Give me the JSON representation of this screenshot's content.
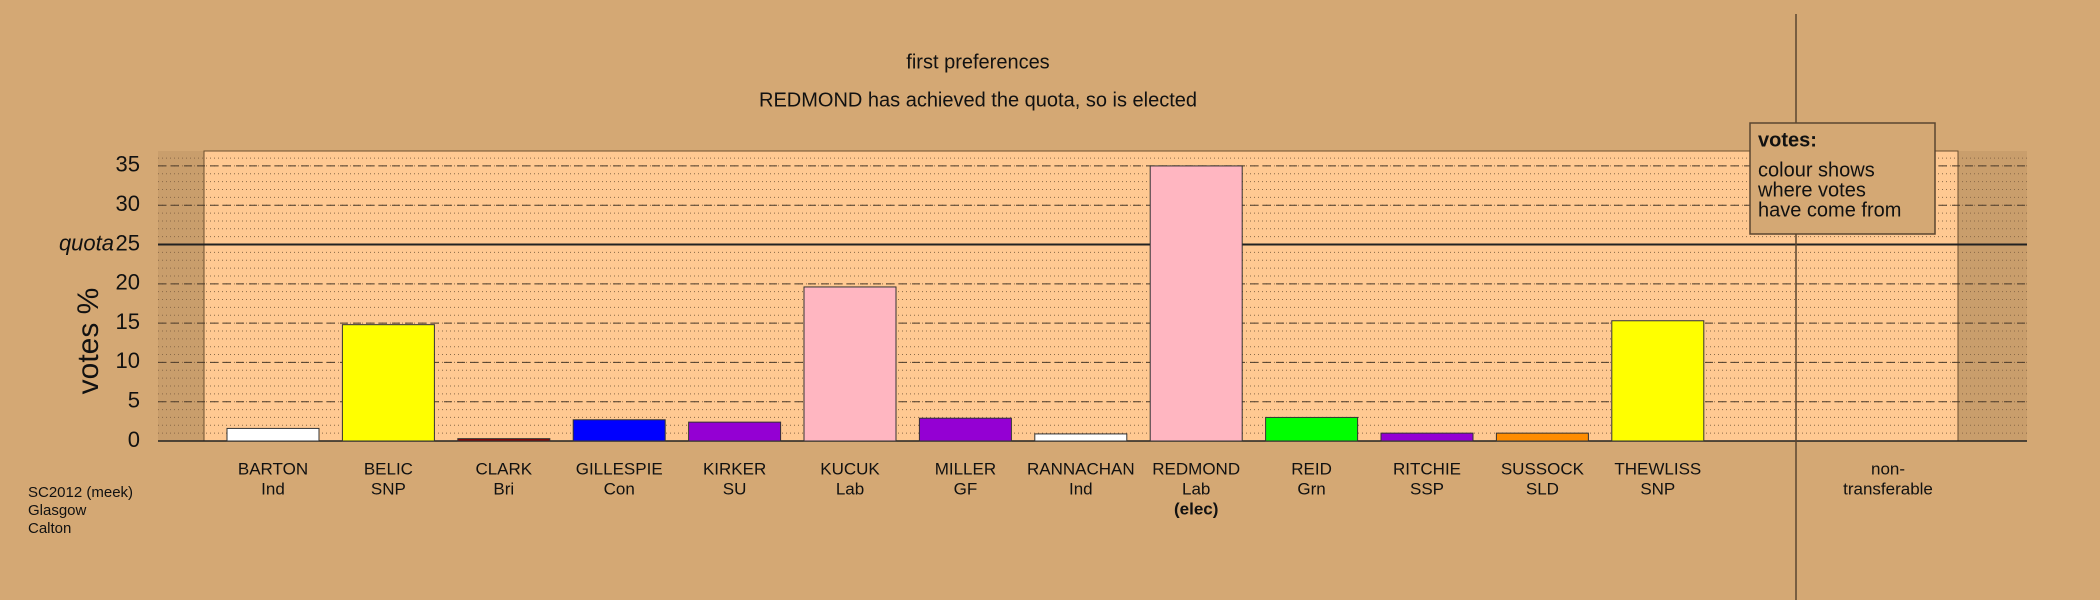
{
  "chart_data": {
    "type": "bar",
    "title": "first preferences",
    "subtitle": "REDMOND has achieved the quota, so is elected",
    "y_label": "votes %",
    "categories": [
      "BARTON",
      "BELIC",
      "CLARK",
      "GILLESPIE",
      "KIRKER",
      "KUCUK",
      "MILLER",
      "RANNACHAN",
      "REDMOND",
      "REID",
      "RITCHIE",
      "SUSSOCK",
      "THEWLISS",
      "non-"
    ],
    "parties": [
      "Ind",
      "SNP",
      "Bri",
      "Con",
      "SU",
      "Lab",
      "GF",
      "Ind",
      "Lab",
      "Grn",
      "SSP",
      "SLD",
      "SNP",
      "transferable"
    ],
    "notes": [
      null,
      null,
      null,
      null,
      null,
      null,
      null,
      null,
      "(elec)",
      null,
      null,
      null,
      null,
      null
    ],
    "values": [
      1.6,
      14.8,
      0.3,
      2.7,
      2.4,
      19.6,
      2.9,
      0.9,
      35.0,
      3.0,
      1.0,
      1.0,
      15.3,
      null
    ],
    "colors": [
      "#ffffff",
      "#ffff00",
      "#8b0000",
      "#0000ff",
      "#9400d3",
      "#ffb6c1",
      "#9400d3",
      "#ffffff",
      "#ffb6c1",
      "#00ff00",
      "#9400d3",
      "#ff8c00",
      "#ffff00",
      "#ffffff"
    ],
    "ylim": [
      0,
      36.9
    ],
    "yticks": [
      0,
      5,
      10,
      15,
      20,
      25,
      30,
      35
    ],
    "quota": 25,
    "quota_label": "quota",
    "grid": true,
    "legend": {
      "title": "votes:",
      "lines": [
        "colour shows",
        "where votes",
        "have come from"
      ]
    },
    "footnote": [
      "SC2012 (meek)",
      "Glasgow",
      "Calton"
    ]
  }
}
